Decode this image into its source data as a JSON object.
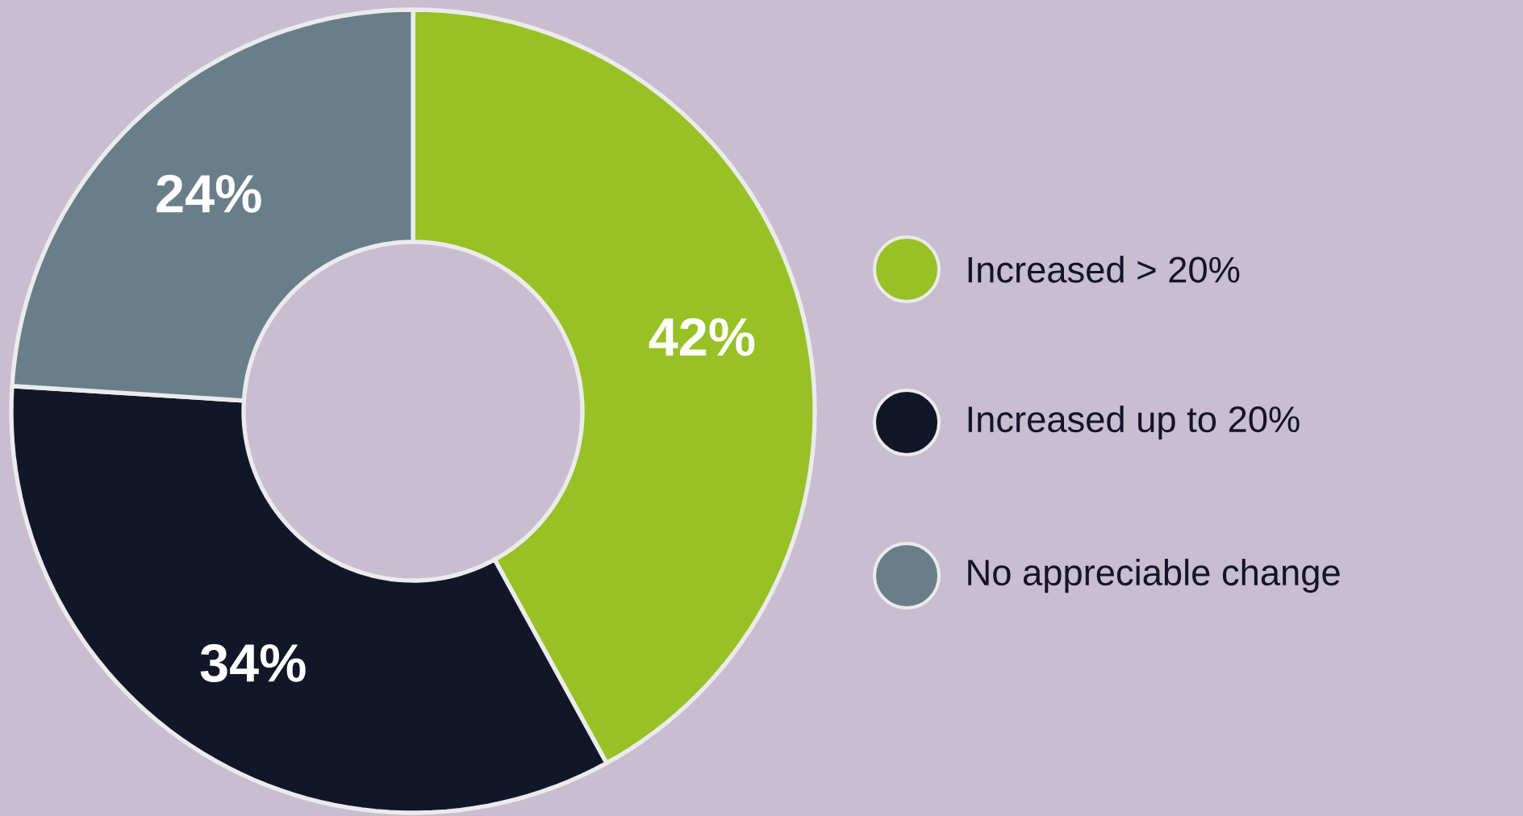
{
  "chart_data": {
    "type": "donut",
    "categories": [
      "Increased > 20%",
      "Increased up to 20%",
      "No appreciable change"
    ],
    "values": [
      42,
      34,
      24
    ],
    "colors": [
      "#97c124",
      "#121629",
      "#687f8a"
    ],
    "value_labels": [
      "42%",
      "34%",
      "24%"
    ],
    "legend": "right"
  }
}
